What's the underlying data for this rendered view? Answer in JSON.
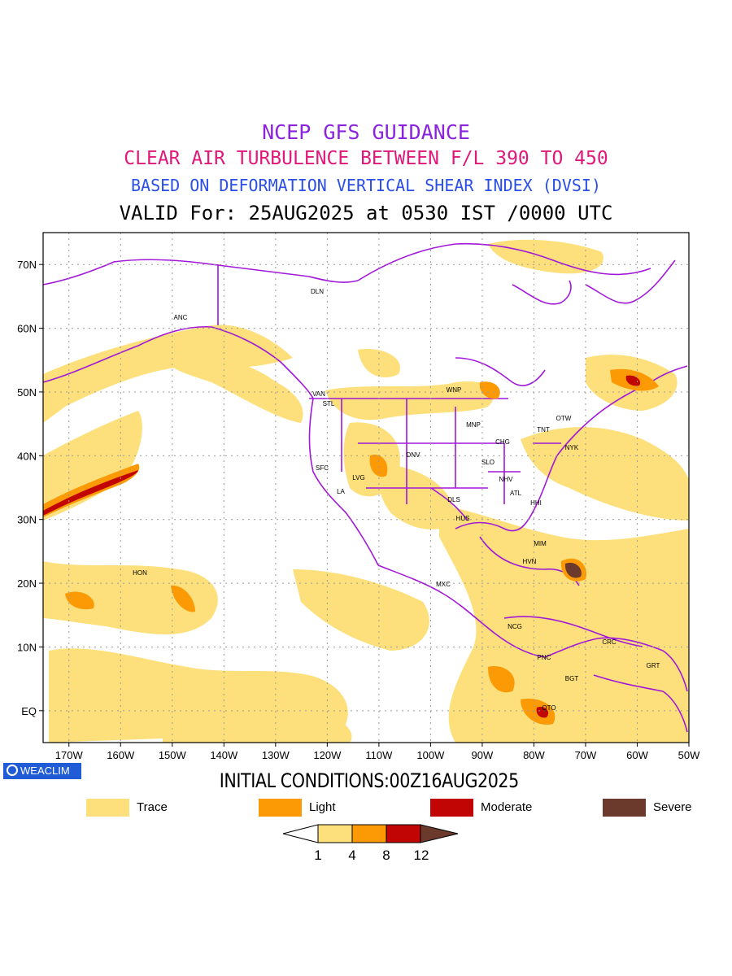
{
  "header": {
    "line1": "NCEP GFS GUIDANCE",
    "line2": "CLEAR AIR TURBULENCE BETWEEN F/L 390 TO 450",
    "line3": "BASED ON DEFORMATION VERTICAL SHEAR INDEX (DVSI)",
    "line4": "VALID For: 25AUG2025 at 0530 IST /0000 UTC"
  },
  "colors": {
    "line1": "#8b22dd",
    "line2": "#e0187a",
    "line3": "#2a4ee8",
    "boundary": "#a218d8",
    "trace": "#fde07b",
    "light": "#fb9a04",
    "moderate": "#c10505",
    "severe": "#6b3a2c"
  },
  "map": {
    "lat_labels": [
      "70N",
      "60N",
      "50N",
      "40N",
      "30N",
      "20N",
      "10N",
      "EQ"
    ],
    "lon_labels": [
      "170W",
      "160W",
      "150W",
      "140W",
      "130W",
      "120W",
      "110W",
      "100W",
      "90W",
      "80W",
      "70W",
      "60W",
      "50W"
    ],
    "cities": [
      "DLN",
      "ANC",
      "VAN",
      "STL",
      "WNP",
      "OTW",
      "MNP",
      "TNT",
      "CHG",
      "NYK",
      "DNV",
      "SLO",
      "SFC",
      "LVG",
      "NHV",
      "LA",
      "ATL",
      "DLS",
      "HHI",
      "HUS",
      "MIM",
      "HON",
      "HVN",
      "MXC",
      "NCG",
      "CRC",
      "PNC",
      "GRT",
      "BGT",
      "QTO"
    ]
  },
  "footer": {
    "brand": "WEACLIM",
    "brand_icon": "ring-logo-icon",
    "initial_conditions": "INITIAL CONDITIONS:00Z16AUG2025"
  },
  "legend": [
    {
      "label": "Trace",
      "color": "#fde07b"
    },
    {
      "label": "Light",
      "color": "#fb9a04"
    },
    {
      "label": "Moderate",
      "color": "#c10505"
    },
    {
      "label": "Severe",
      "color": "#6b3a2c"
    }
  ],
  "colorbar": {
    "ticks": [
      "1",
      "4",
      "8",
      "12"
    ],
    "colors": [
      "#fde07b",
      "#fb9a04",
      "#c10505",
      "#6b3a2c"
    ]
  }
}
